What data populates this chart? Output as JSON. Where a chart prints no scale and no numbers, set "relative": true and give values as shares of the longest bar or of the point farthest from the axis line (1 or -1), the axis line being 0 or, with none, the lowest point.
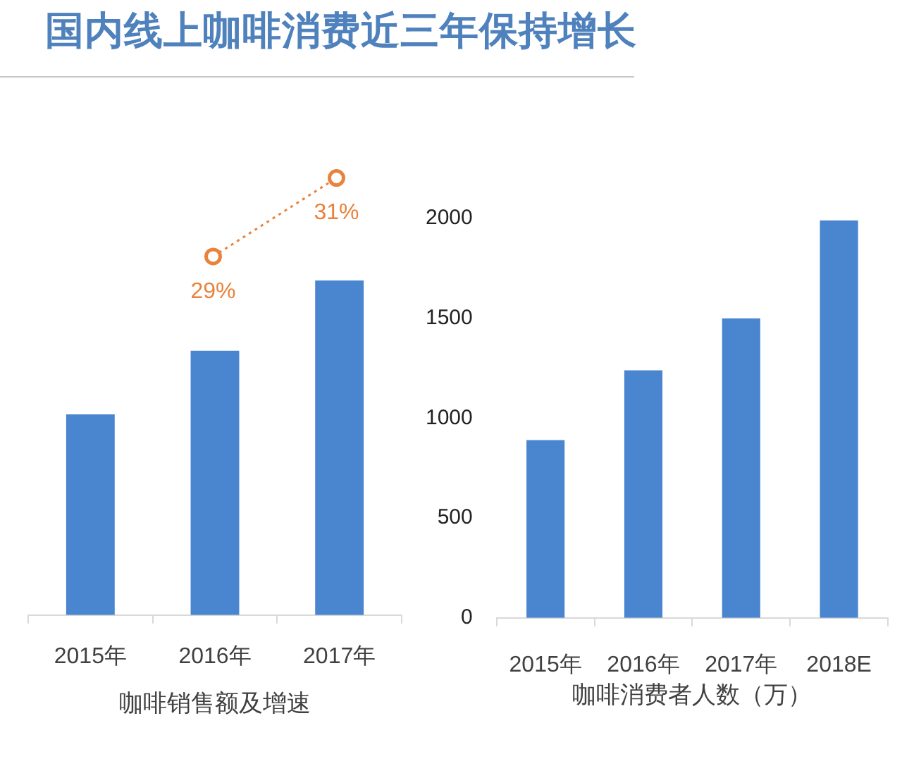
{
  "chart_data": [
    {
      "type": "bar",
      "xlabel": "咖啡销售额及增速",
      "categories": [
        "2015年",
        "2016年",
        "2017年"
      ],
      "relative": true,
      "color": "#4a85cf",
      "values": [
        0.6,
        0.79,
        1
      ]
    },
    {
      "type": "line",
      "title": "国内线上咖啡消费近三年保持增长",
      "categories": [
        null,
        null,
        null
      ],
      "tick_labels": false,
      "color": "#e8823c",
      "values": [
        null,
        29,
        31
      ],
      "value_labels": [
        null,
        "29%",
        "31%"
      ],
      "marker": "circle",
      "line_style": "dotted"
    },
    {
      "type": "bar",
      "xlabel": "咖啡消费者人数（万）",
      "categories": [
        "2015年",
        "2016年",
        "2017年",
        "2018E"
      ],
      "color": "#4a85cf",
      "values": [
        890,
        1240,
        1500,
        1990
      ],
      "ylim": [
        0,
        2000
      ],
      "yticks": [
        0,
        500,
        1000,
        1500,
        2000
      ]
    }
  ]
}
